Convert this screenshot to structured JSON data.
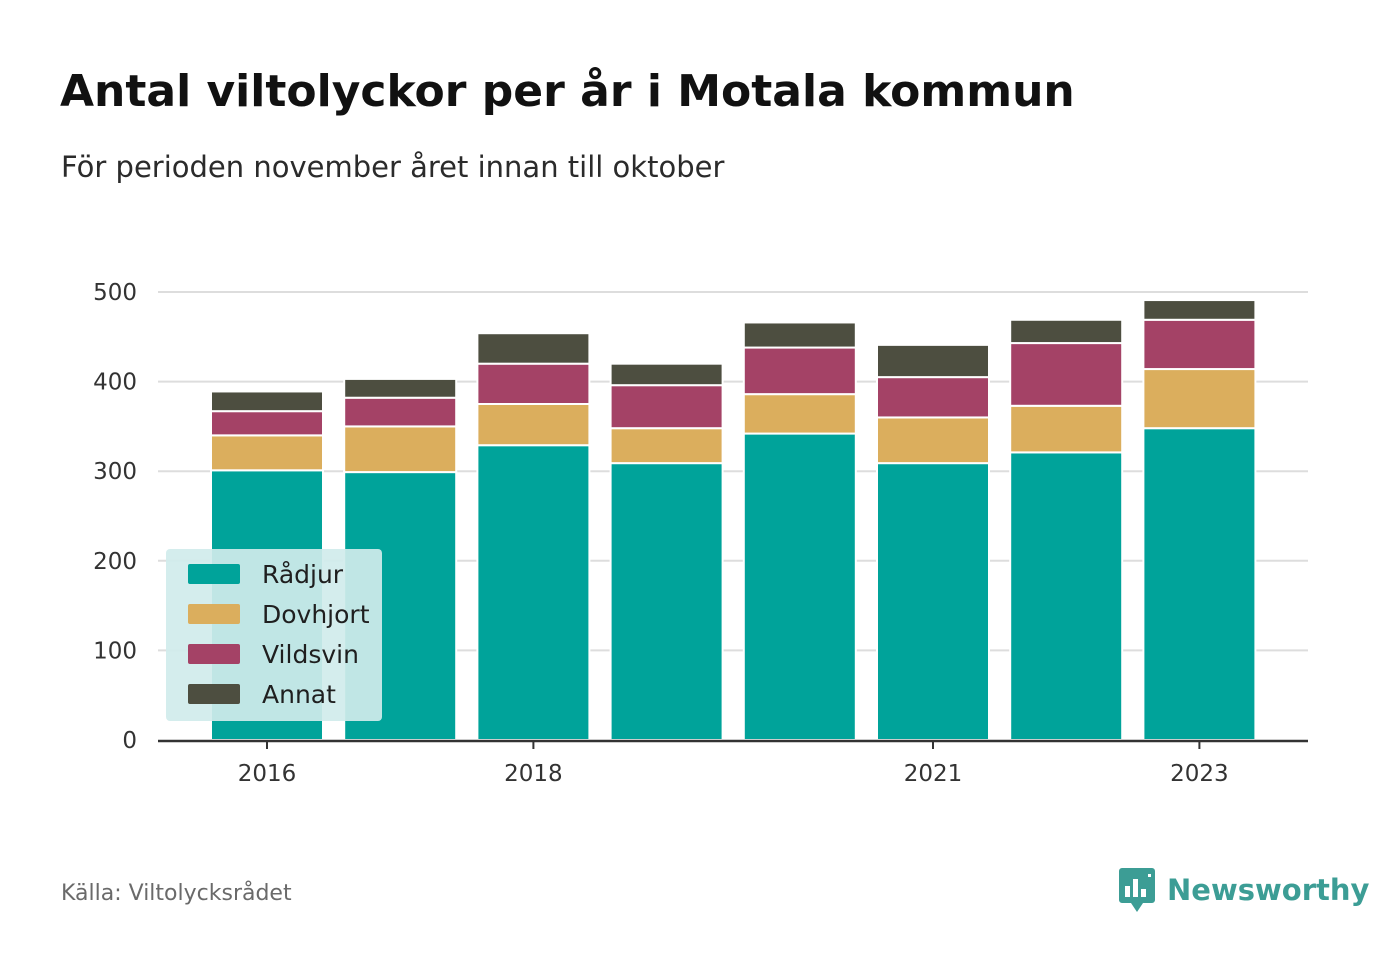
{
  "header": {
    "title": "Antal viltolyckor per år i Motala kommun",
    "subtitle": "För perioden november året innan till oktober"
  },
  "footer": {
    "source": "Källa: Viltolycksrådet",
    "brand": "Newsworthy",
    "brand_color": "#3c9d95"
  },
  "chart_data": {
    "type": "bar",
    "stacked": true,
    "title": "Antal viltolyckor per år i Motala kommun",
    "subtitle": "För perioden november året innan till oktober",
    "categories": [
      2016,
      2017,
      2018,
      2019,
      2020,
      2021,
      2022,
      2023
    ],
    "x_tick_labels": [
      "2016",
      "2018",
      "2021",
      "2023"
    ],
    "y_ticks": [
      0,
      100,
      200,
      300,
      400,
      500
    ],
    "ylim": [
      0,
      500
    ],
    "grid": true,
    "legend_position": "bottom-left",
    "series": [
      {
        "name": "Rådjur",
        "color": "#00a39a",
        "values": [
          301,
          299,
          329,
          309,
          342,
          309,
          321,
          348
        ]
      },
      {
        "name": "Dovhjort",
        "color": "#dbae5d",
        "values": [
          39,
          51,
          46,
          39,
          44,
          51,
          52,
          66
        ]
      },
      {
        "name": "Vildsvin",
        "color": "#a44266",
        "values": [
          27,
          32,
          45,
          48,
          52,
          45,
          70,
          55
        ]
      },
      {
        "name": "Annat",
        "color": "#4d4e40",
        "values": [
          22,
          21,
          34,
          24,
          28,
          36,
          26,
          22
        ]
      }
    ]
  }
}
